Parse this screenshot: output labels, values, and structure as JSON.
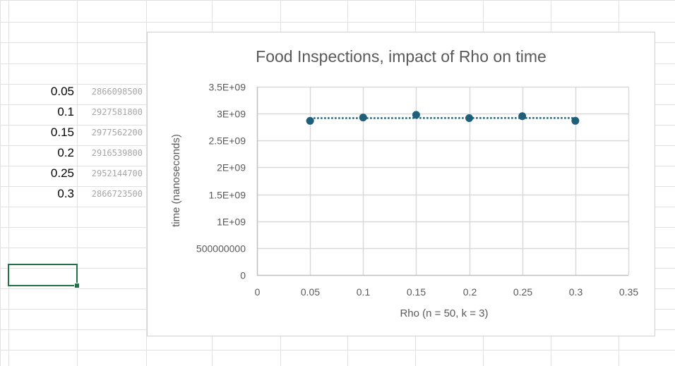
{
  "sheet": {
    "rows": [
      {
        "rho": "0.05",
        "time": "2866098500"
      },
      {
        "rho": "0.1",
        "time": "2927581800"
      },
      {
        "rho": "0.15",
        "time": "2977562200"
      },
      {
        "rho": "0.2",
        "time": "2916539800"
      },
      {
        "rho": "0.25",
        "time": "2952144700"
      },
      {
        "rho": "0.3",
        "time": "2866723500"
      }
    ]
  },
  "chart_data": {
    "type": "scatter",
    "title": "Food Inspections, impact of Rho on time",
    "xlabel": "Rho (n = 50,  k = 3)",
    "ylabel": "time (nanoseconds)",
    "x": [
      0.05,
      0.1,
      0.15,
      0.2,
      0.25,
      0.3
    ],
    "y": [
      2866098500,
      2927581800,
      2977562200,
      2916539800,
      2952144700,
      2866723500
    ],
    "xlim": [
      0,
      0.35
    ],
    "ylim": [
      0,
      3500000000
    ],
    "x_ticks": [
      0,
      0.05,
      0.1,
      0.15,
      0.2,
      0.25,
      0.3,
      0.35
    ],
    "x_tick_labels": [
      "0",
      "0.05",
      "0.1",
      "0.15",
      "0.2",
      "0.25",
      "0.3",
      "0.35"
    ],
    "y_ticks": [
      0,
      500000000,
      1000000000,
      1500000000,
      2000000000,
      2500000000,
      3000000000,
      3500000000
    ],
    "y_tick_labels": [
      "0",
      "500000000",
      "1E+09",
      "1.5E+09",
      "2E+09",
      "2.5E+09",
      "3E+09",
      "3.5E+09"
    ],
    "grid": true,
    "trendline": {
      "type": "linear",
      "style": "dotted"
    },
    "colors": {
      "marker": "#1f5f7a",
      "trendline": "#1f5f7a",
      "grid": "#d9d9d9",
      "axis": "#bfbfbf"
    }
  }
}
